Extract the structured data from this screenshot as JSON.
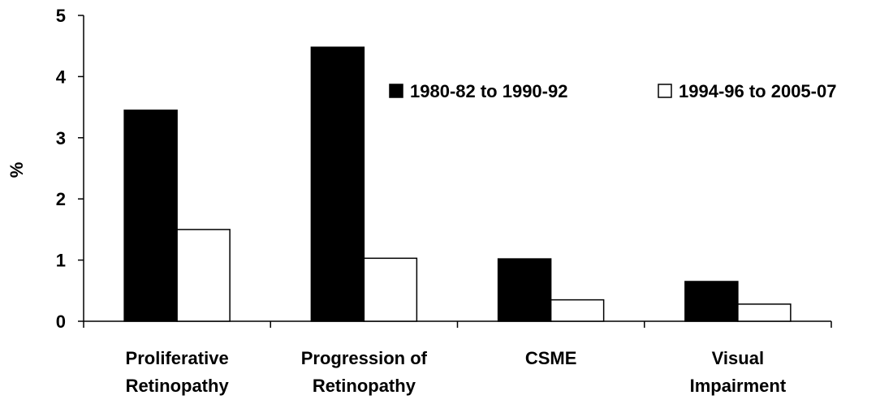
{
  "chart_data": {
    "type": "bar",
    "title": "",
    "xlabel": "",
    "ylabel": "%",
    "ylim": [
      0,
      5
    ],
    "yticks": [
      0,
      1,
      2,
      3,
      4,
      5
    ],
    "grid": false,
    "legend_position": "top-right",
    "categories": [
      [
        "Proliferative",
        "Retinopathy"
      ],
      [
        "Progression of",
        "Retinopathy"
      ],
      [
        "CSME"
      ],
      [
        "Visual",
        "Impairment"
      ]
    ],
    "series": [
      {
        "name": "1980-82 to 1990-92",
        "fill": "#000000",
        "values": [
          3.45,
          4.48,
          1.02,
          0.65
        ]
      },
      {
        "name": "1994-96 to 2005-07",
        "fill": "#ffffff",
        "values": [
          1.5,
          1.03,
          0.35,
          0.28
        ]
      }
    ]
  }
}
